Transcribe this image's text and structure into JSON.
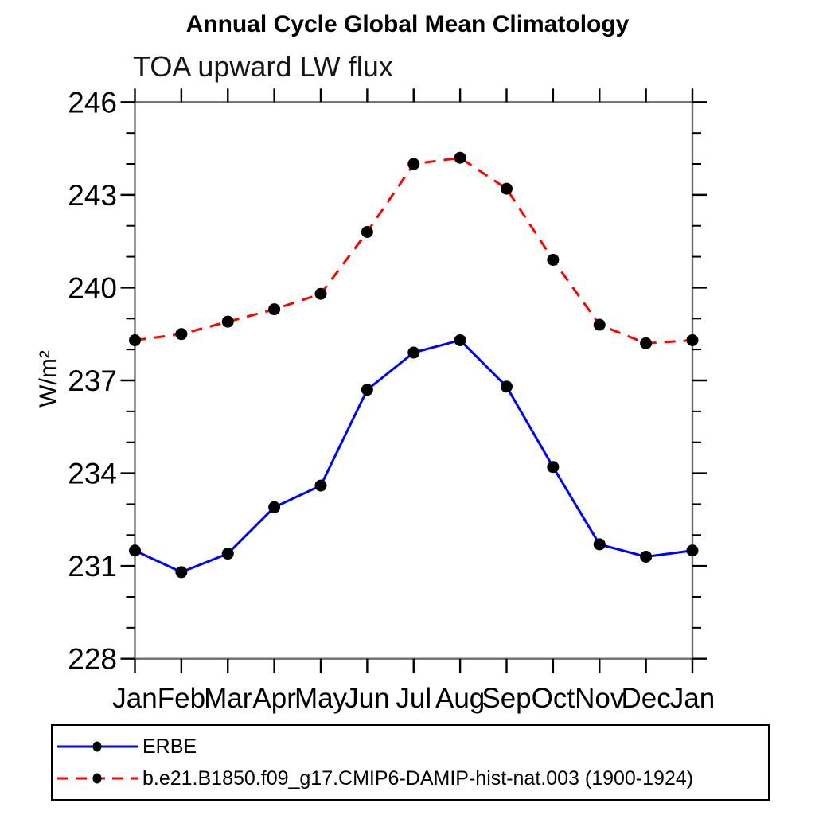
{
  "chart_data": {
    "type": "line",
    "title": "Annual Cycle Global Mean Climatology",
    "subtitle": "TOA upward LW flux",
    "ylabel": "W/m²",
    "x_categories": [
      "Jan",
      "Feb",
      "Mar",
      "Apr",
      "May",
      "Jun",
      "Jul",
      "Aug",
      "Sep",
      "Oct",
      "Nov",
      "Dec",
      "Jan"
    ],
    "ylim": [
      228,
      246
    ],
    "ytick_major": [
      228,
      231,
      234,
      237,
      240,
      243,
      246
    ],
    "ytick_minor_step": 1,
    "grid": "off",
    "legend_position": "bottom",
    "marker_color": "#000000",
    "series": [
      {
        "name": "ERBE",
        "color": "#0000ff",
        "line_style": "solid",
        "marker": "circle",
        "values": [
          231.5,
          230.8,
          231.4,
          232.9,
          233.6,
          236.7,
          237.9,
          238.3,
          236.8,
          234.2,
          231.7,
          231.3,
          231.5
        ]
      },
      {
        "name": "b.e21.B1850.f09_g17.CMIP6-DAMIP-hist-nat.003 (1900-1924)",
        "color": "#ff0000",
        "line_style": "dashed",
        "marker": "circle",
        "values": [
          238.3,
          238.5,
          238.9,
          239.3,
          239.8,
          241.8,
          244.0,
          244.2,
          243.2,
          240.9,
          238.8,
          238.2,
          238.3
        ]
      }
    ]
  }
}
